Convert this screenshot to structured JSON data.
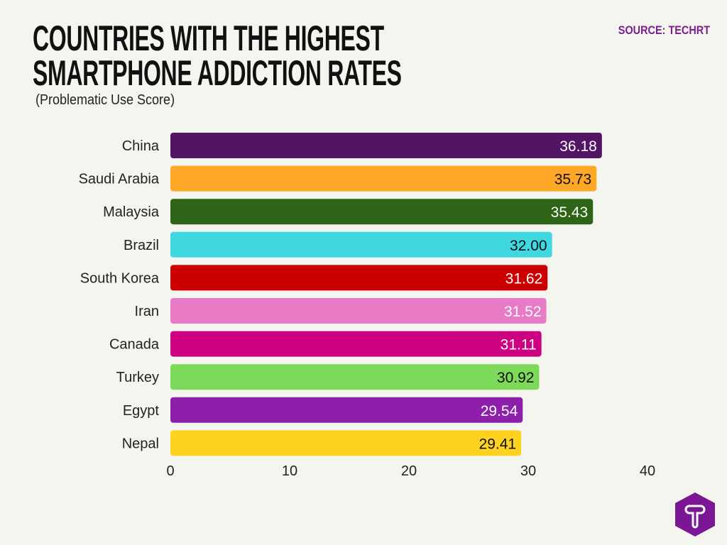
{
  "chart_data": {
    "type": "bar",
    "orientation": "horizontal",
    "title": "COUNTRIES WITH THE HIGHEST SMARTPHONE ADDICTION RATES",
    "subtitle": "(Problematic Use Score)",
    "source": "SOURCE: TECHRT",
    "categories": [
      "China",
      "Saudi Arabia",
      "Malaysia",
      "Brazil",
      "South Korea",
      "Iran",
      "Canada",
      "Turkey",
      "Egypt",
      "Nepal"
    ],
    "values": [
      36.18,
      35.73,
      35.43,
      32.0,
      31.62,
      31.52,
      31.11,
      30.92,
      29.54,
      29.41
    ],
    "value_labels": [
      "36.18",
      "35.73",
      "35.43",
      "32.00",
      "31.62",
      "31.52",
      "31.11",
      "30.92",
      "29.54",
      "29.41"
    ],
    "colors": [
      "#541466",
      "#ffa726",
      "#2e6417",
      "#3fd8e0",
      "#cc0000",
      "#e87ac6",
      "#cc0080",
      "#7dd95a",
      "#8e1fab",
      "#ffd21f"
    ],
    "label_colors": [
      "#ffffff",
      "#111111",
      "#ffffff",
      "#111111",
      "#ffffff",
      "#ffffff",
      "#ffffff",
      "#111111",
      "#ffffff",
      "#111111"
    ],
    "xlim": [
      0,
      40
    ],
    "xticks": [
      "0",
      "10",
      "20",
      "30",
      "40"
    ],
    "xlabel": "",
    "ylabel": "",
    "grid": false,
    "legend": "none"
  },
  "logo": {
    "letter": "T",
    "color": "#7b1697"
  }
}
